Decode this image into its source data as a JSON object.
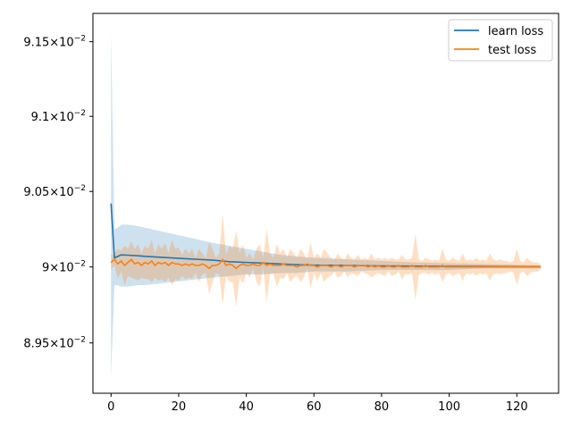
{
  "chart_data": {
    "type": "line",
    "title": "",
    "xlabel": "",
    "ylabel": "",
    "xlim": [
      -5.35,
      132.35
    ],
    "ylim": [
      0.08917,
      0.09169
    ],
    "yscale": "log",
    "grid": false,
    "legend_position": "top-right",
    "x_ticks": [
      0,
      20,
      40,
      60,
      80,
      100,
      120
    ],
    "x_tick_labels": [
      "0",
      "20",
      "40",
      "60",
      "80",
      "100",
      "120"
    ],
    "y_ticks": [
      0.0895,
      0.09,
      0.0905,
      0.091,
      0.0915
    ],
    "y_tick_labels": [
      {
        "mantissa": "8.95",
        "exponent": "-2"
      },
      {
        "mantissa": "9",
        "exponent": "-2"
      },
      {
        "mantissa": "9.05",
        "exponent": "-2"
      },
      {
        "mantissa": "9.1",
        "exponent": "-2"
      },
      {
        "mantissa": "9.15",
        "exponent": "-2"
      }
    ],
    "series": [
      {
        "name": "learn loss",
        "color": "#1f77b4",
        "band_color": "#1f77b4",
        "x": [
          0,
          1,
          2,
          3,
          5,
          8,
          10,
          14,
          18,
          22,
          26,
          30,
          35,
          40,
          45,
          50,
          55,
          60,
          70,
          80,
          90,
          100,
          110,
          120,
          127
        ],
        "values": [
          0.09042,
          0.09006,
          0.09007,
          0.09008,
          0.090078,
          0.090074,
          0.09007,
          0.090065,
          0.09006,
          0.090055,
          0.09005,
          0.090045,
          0.090035,
          0.09003,
          0.090025,
          0.09002,
          0.090015,
          0.090012,
          0.09001,
          0.090007,
          0.090005,
          0.090004,
          0.090003,
          0.090002,
          0.090002
        ],
        "upper": [
          0.09156,
          0.09025,
          0.09026,
          0.09028,
          0.09028,
          0.09027,
          0.09026,
          0.09024,
          0.09022,
          0.0902,
          0.09018,
          0.09016,
          0.09014,
          0.09012,
          0.0901,
          0.09008,
          0.09007,
          0.09006,
          0.09005,
          0.09004,
          0.09003,
          0.090025,
          0.09002,
          0.090015,
          0.09001
        ],
        "lower": [
          0.08928,
          0.08988,
          0.08988,
          0.08987,
          0.08987,
          0.08988,
          0.08988,
          0.08989,
          0.0899,
          0.08991,
          0.08992,
          0.08993,
          0.08994,
          0.08995,
          0.08995,
          0.08996,
          0.08996,
          0.08997,
          0.08997,
          0.08998,
          0.08998,
          0.08998,
          0.08999,
          0.08999,
          0.08999
        ]
      },
      {
        "name": "test loss",
        "color": "#ff7f0e",
        "band_color": "#ff7f0e",
        "x": [
          0,
          1,
          2,
          3,
          4,
          5,
          6,
          7,
          8,
          9,
          10,
          11,
          12,
          13,
          14,
          15,
          16,
          17,
          18,
          19,
          20,
          21,
          22,
          23,
          24,
          25,
          26,
          27,
          28,
          29,
          30,
          31,
          32,
          33,
          34,
          35,
          36,
          37,
          38,
          39,
          40,
          41,
          42,
          43,
          44,
          45,
          46,
          47,
          48,
          49,
          50,
          51,
          52,
          53,
          54,
          55,
          56,
          57,
          58,
          59,
          60,
          61,
          62,
          63,
          64,
          65,
          66,
          67,
          68,
          69,
          70,
          71,
          72,
          73,
          74,
          75,
          76,
          77,
          78,
          79,
          80,
          81,
          82,
          83,
          84,
          85,
          86,
          87,
          88,
          89,
          90,
          91,
          92,
          93,
          94,
          95,
          96,
          97,
          98,
          99,
          100,
          101,
          102,
          103,
          104,
          105,
          106,
          107,
          108,
          109,
          110,
          111,
          112,
          113,
          114,
          115,
          116,
          117,
          118,
          119,
          120,
          121,
          122,
          123,
          124,
          125,
          126,
          127
        ],
        "values": [
          0.09003,
          0.09005,
          0.09002,
          0.09004,
          0.09001,
          0.09003,
          0.09005,
          0.09002,
          0.09003,
          0.09001,
          0.09003,
          0.09002,
          0.09004,
          0.09001,
          0.09003,
          0.09002,
          0.09003,
          0.09001,
          0.09003,
          0.09002,
          0.09002,
          0.09001,
          0.09002,
          0.09001,
          0.09002,
          0.09001,
          0.09001,
          0.09002,
          0.09001,
          0.08999,
          0.09001,
          0.09001,
          0.09002,
          0.09005,
          0.09001,
          0.09002,
          0.09001,
          0.08999,
          0.09001,
          0.09002,
          0.09001,
          0.09001,
          0.09002,
          0.09001,
          0.09001,
          0.09003,
          0.09001,
          0.09002,
          0.09001,
          0.09001,
          0.09001,
          0.09002,
          0.09001,
          0.09001,
          0.09001,
          0.09,
          0.09001,
          0.09001,
          0.09002,
          0.09001,
          0.09001,
          0.09,
          0.09001,
          0.09001,
          0.09001,
          0.09,
          0.09001,
          0.09001,
          0.09,
          0.09001,
          0.09001,
          0.09001,
          0.09,
          0.09001,
          0.09001,
          0.09001,
          0.09,
          0.09001,
          0.09,
          0.09001,
          0.09,
          0.09,
          0.09001,
          0.09,
          0.09,
          0.09001,
          0.09,
          0.09,
          0.09,
          0.09001,
          0.09,
          0.09,
          0.09,
          0.09001,
          0.09,
          0.09,
          0.09,
          0.09,
          0.09001,
          0.09,
          0.09,
          0.09,
          0.09,
          0.09,
          0.09,
          0.09,
          0.09,
          0.09,
          0.09,
          0.09,
          0.09,
          0.09,
          0.09,
          0.09,
          0.09,
          0.09,
          0.09,
          0.09,
          0.09,
          0.09,
          0.09,
          0.09,
          0.09,
          0.09,
          0.09,
          0.09,
          0.09,
          0.09
        ],
        "upper": [
          0.09008,
          0.09009,
          0.09012,
          0.09011,
          0.09014,
          0.09012,
          0.09017,
          0.09012,
          0.09015,
          0.09009,
          0.09014,
          0.09012,
          0.09018,
          0.09009,
          0.09015,
          0.09012,
          0.09016,
          0.09009,
          0.09018,
          0.09012,
          0.09013,
          0.09008,
          0.09012,
          0.09009,
          0.09012,
          0.09006,
          0.09012,
          0.09009,
          0.09006,
          0.09016,
          0.09012,
          0.09006,
          0.09009,
          0.09035,
          0.09008,
          0.09014,
          0.09012,
          0.09024,
          0.09009,
          0.09015,
          0.09006,
          0.09009,
          0.09005,
          0.09012,
          0.09015,
          0.09006,
          0.09025,
          0.09009,
          0.09006,
          0.09015,
          0.09009,
          0.09012,
          0.09006,
          0.09012,
          0.09009,
          0.09006,
          0.09012,
          0.09009,
          0.09005,
          0.09016,
          0.09006,
          0.09009,
          0.09006,
          0.09012,
          0.09009,
          0.09006,
          0.09005,
          0.09009,
          0.09006,
          0.09005,
          0.09009,
          0.09006,
          0.09005,
          0.09008,
          0.09005,
          0.09006,
          0.09005,
          0.09009,
          0.09005,
          0.09006,
          0.09005,
          0.09006,
          0.09005,
          0.09006,
          0.09005,
          0.09005,
          0.09008,
          0.09005,
          0.09005,
          0.09006,
          0.09022,
          0.09005,
          0.09004,
          0.09006,
          0.09005,
          0.09004,
          0.09005,
          0.09004,
          0.09012,
          0.09005,
          0.09004,
          0.09006,
          0.09005,
          0.09004,
          0.09009,
          0.09004,
          0.09005,
          0.09004,
          0.09006,
          0.09004,
          0.09005,
          0.09004,
          0.09009,
          0.09005,
          0.09004,
          0.09005,
          0.09004,
          0.09004,
          0.09003,
          0.09004,
          0.09012,
          0.09004,
          0.09003,
          0.09006,
          0.09004,
          0.09003,
          0.09003,
          0.09002
        ],
        "lower": [
          0.08998,
          0.09001,
          0.08992,
          0.08997,
          0.08988,
          0.08994,
          0.08993,
          0.08992,
          0.08991,
          0.08993,
          0.08992,
          0.08992,
          0.0899,
          0.08993,
          0.08991,
          0.08992,
          0.0899,
          0.08993,
          0.08988,
          0.08992,
          0.08991,
          0.08994,
          0.08992,
          0.08993,
          0.08992,
          0.08996,
          0.0899,
          0.08995,
          0.08996,
          0.08982,
          0.0899,
          0.08996,
          0.08995,
          0.08975,
          0.08994,
          0.0899,
          0.0899,
          0.08974,
          0.08993,
          0.08989,
          0.08996,
          0.08993,
          0.08999,
          0.0899,
          0.08987,
          0.09,
          0.08977,
          0.08995,
          0.08996,
          0.08987,
          0.08993,
          0.08992,
          0.08996,
          0.0899,
          0.08993,
          0.08994,
          0.0899,
          0.08993,
          0.08999,
          0.08986,
          0.08996,
          0.08991,
          0.08996,
          0.0899,
          0.08993,
          0.08994,
          0.08997,
          0.08993,
          0.08994,
          0.08997,
          0.08993,
          0.08996,
          0.08995,
          0.08994,
          0.08997,
          0.08996,
          0.08995,
          0.08993,
          0.08995,
          0.08996,
          0.08995,
          0.08994,
          0.08997,
          0.08994,
          0.08995,
          0.08997,
          0.08992,
          0.08995,
          0.08995,
          0.08996,
          0.08978,
          0.08995,
          0.08996,
          0.08996,
          0.08995,
          0.08996,
          0.08995,
          0.08996,
          0.0899,
          0.08995,
          0.08996,
          0.08994,
          0.08995,
          0.08996,
          0.08991,
          0.08996,
          0.08995,
          0.08996,
          0.08994,
          0.08996,
          0.08995,
          0.08996,
          0.08991,
          0.08995,
          0.08996,
          0.08995,
          0.08996,
          0.08996,
          0.08997,
          0.08996,
          0.08988,
          0.08996,
          0.08997,
          0.08994,
          0.08996,
          0.08997,
          0.08997,
          0.08998
        ]
      }
    ]
  }
}
